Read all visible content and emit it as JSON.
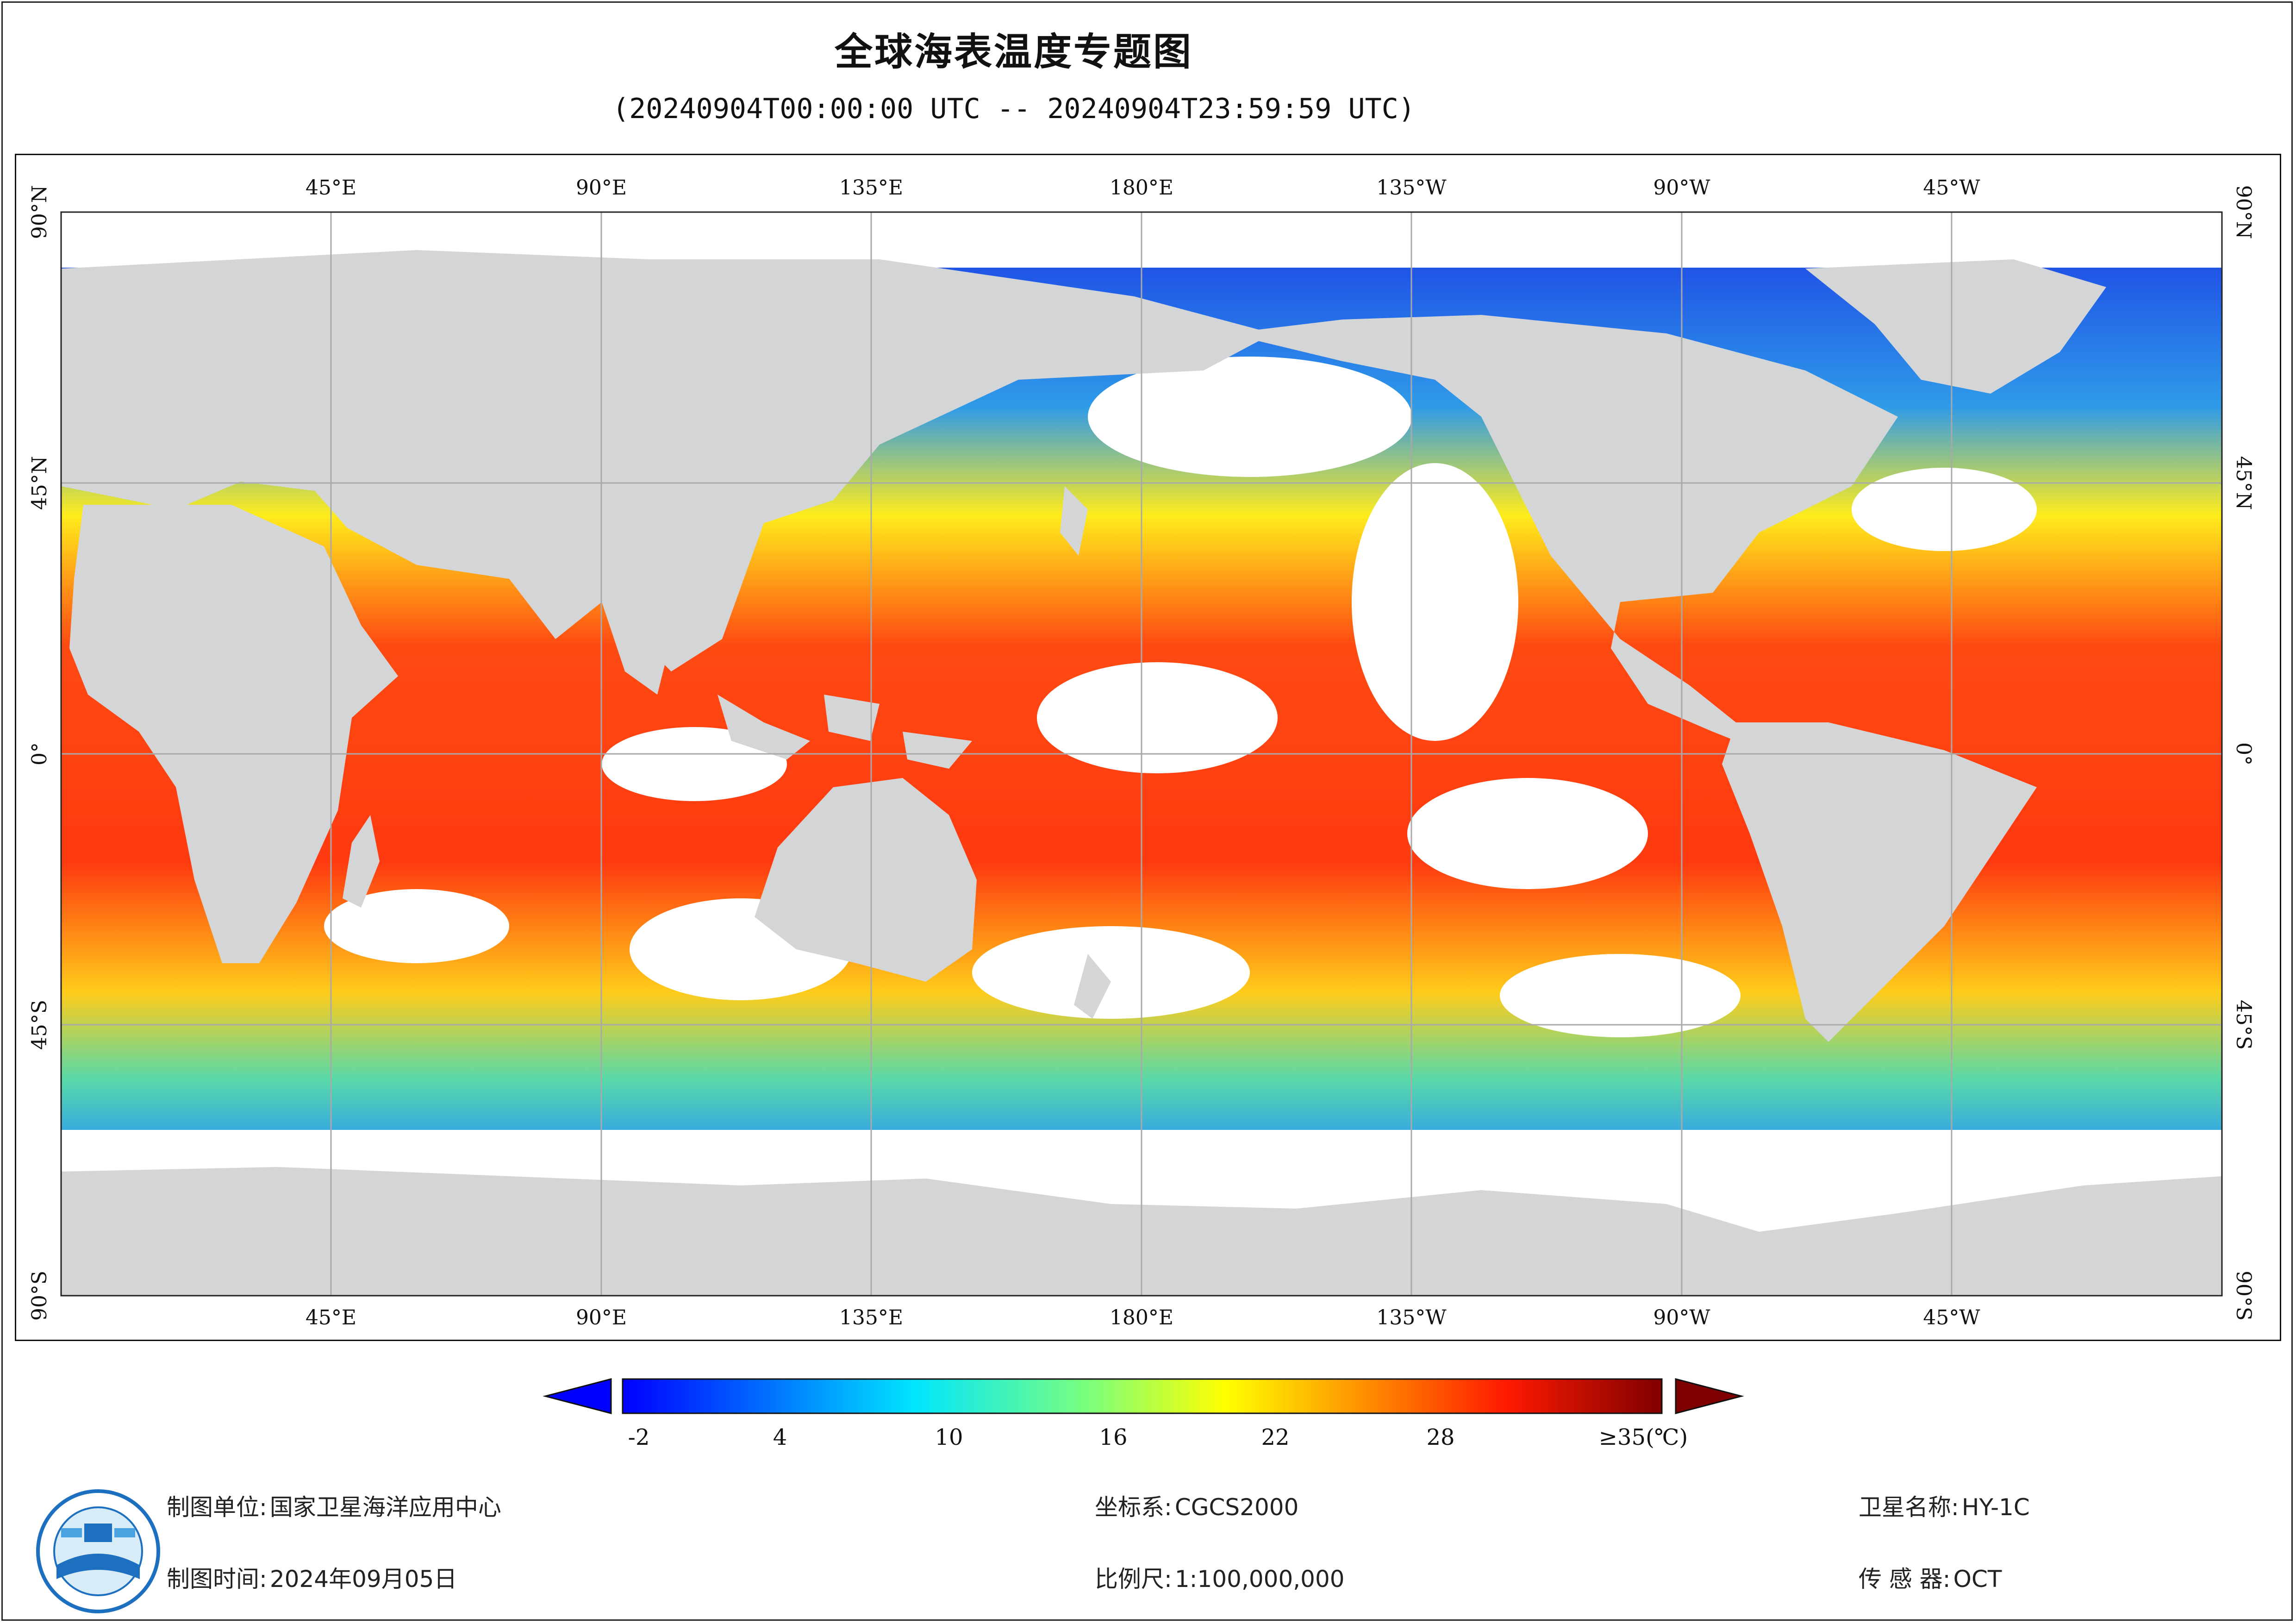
{
  "header": {
    "title": "全球海表温度专题图",
    "subtitle": "(20240904T00:00:00 UTC -- 20240904T23:59:59 UTC)"
  },
  "map": {
    "lon_labels_top": [
      "45°E",
      "90°E",
      "135°E",
      "180°E",
      "135°W",
      "90°W",
      "45°W"
    ],
    "lon_labels_bottom": [
      "45°E",
      "90°E",
      "135°E",
      "180°E",
      "135°W",
      "90°W",
      "45°W"
    ],
    "lat_labels": [
      "90°N",
      "45°N",
      "0°",
      "45°S",
      "90°S"
    ],
    "land_color": "#d4d5d7",
    "grid_color": "#a9a9a9"
  },
  "legend": {
    "ticks": [
      "-2",
      "4",
      "10",
      "16",
      "22",
      "28",
      "≥35(℃)"
    ],
    "min": -2,
    "max": 35,
    "low_color": "#0000ff",
    "high_color": "#7f0000"
  },
  "footer": {
    "unit_label": "制图单位:",
    "unit_value": "国家卫星海洋应用中心",
    "time_label": "制图时间:",
    "time_value": "2024年09月05日",
    "crs_label": "坐标系:",
    "crs_value": "CGCS2000",
    "scale_label": "比例尺:",
    "scale_value": "1:100,000,000",
    "sat_label": "卫星名称:",
    "sat_value": "HY-1C",
    "sensor_label": "传 感 器:",
    "sensor_value": "OCT"
  }
}
